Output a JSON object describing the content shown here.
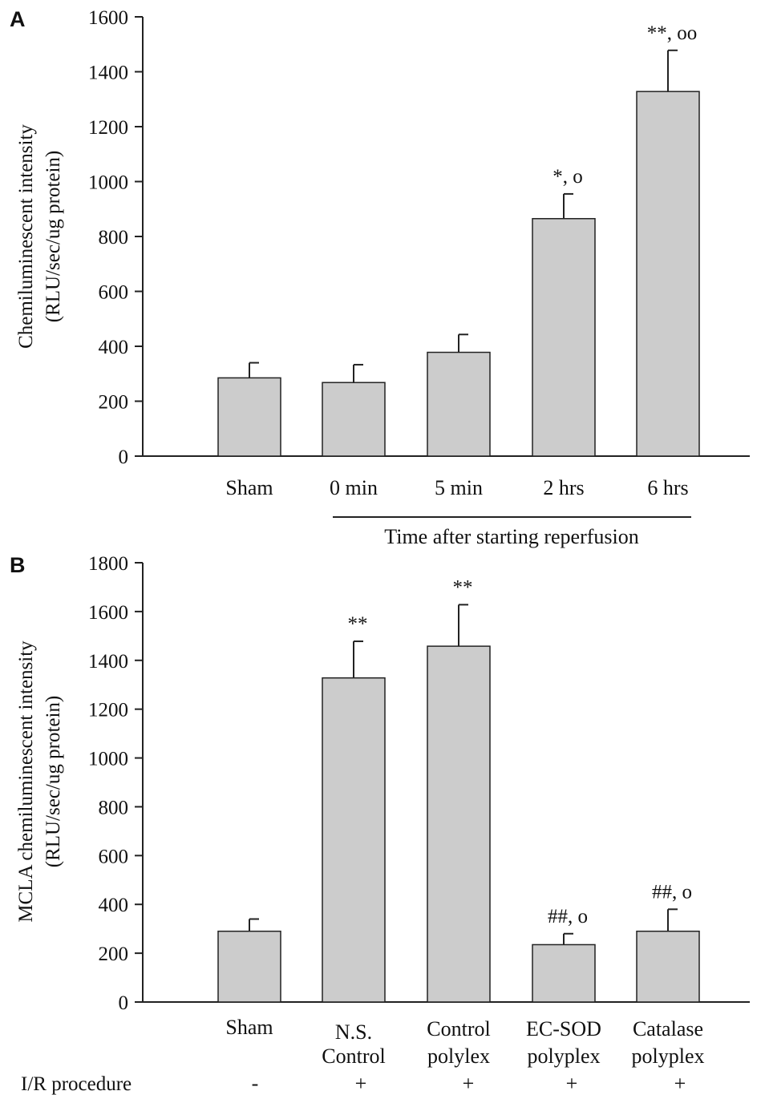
{
  "colors": {
    "bar_fill": "#cccccc",
    "bar_stroke": "#222222",
    "axis": "#222222",
    "text": "#111111"
  },
  "chart_data": [
    {
      "type": "bar",
      "panel_label": "A",
      "title": "",
      "ylabel_line1": "Chemiluminescent intensity",
      "ylabel_line2": "(RLU/sec/ug protein)",
      "xlabel": "",
      "ylim": [
        0,
        1600
      ],
      "yticks": [
        0,
        200,
        400,
        600,
        800,
        1000,
        1200,
        1400,
        1600
      ],
      "categories": [
        "Sham",
        "0 min",
        "5 min",
        "2 hrs",
        "6 hrs"
      ],
      "values": [
        285,
        268,
        378,
        865,
        1328
      ],
      "errors": [
        55,
        65,
        65,
        90,
        150
      ],
      "annotations": [
        "",
        "",
        "",
        "*, o",
        "**, oo"
      ],
      "group_label": "Time after starting reperfusion",
      "grid": false,
      "legend": "none"
    },
    {
      "type": "bar",
      "panel_label": "B",
      "title": "",
      "ylabel_line1": "MCLA chemiluminescent intensity",
      "ylabel_line2": "(RLU/sec/ug protein)",
      "xlabel": "",
      "ylim": [
        0,
        1800
      ],
      "yticks": [
        0,
        200,
        400,
        600,
        800,
        1000,
        1200,
        1400,
        1600,
        1800
      ],
      "categories": [
        [
          "Sham"
        ],
        [
          "N.S.",
          "Control"
        ],
        [
          "Control",
          "polylex"
        ],
        [
          "EC-SOD",
          "polyplex"
        ],
        [
          "Catalase",
          "polyplex"
        ]
      ],
      "values": [
        290,
        1328,
        1458,
        235,
        290
      ],
      "errors": [
        50,
        150,
        170,
        45,
        90
      ],
      "annotations": [
        "",
        "**",
        "**",
        "##, o",
        "##, o"
      ],
      "procedure_label": "I/R procedure",
      "procedure_values": [
        "-",
        "+",
        "+",
        "+",
        "+"
      ],
      "grid": false,
      "legend": "none"
    }
  ]
}
